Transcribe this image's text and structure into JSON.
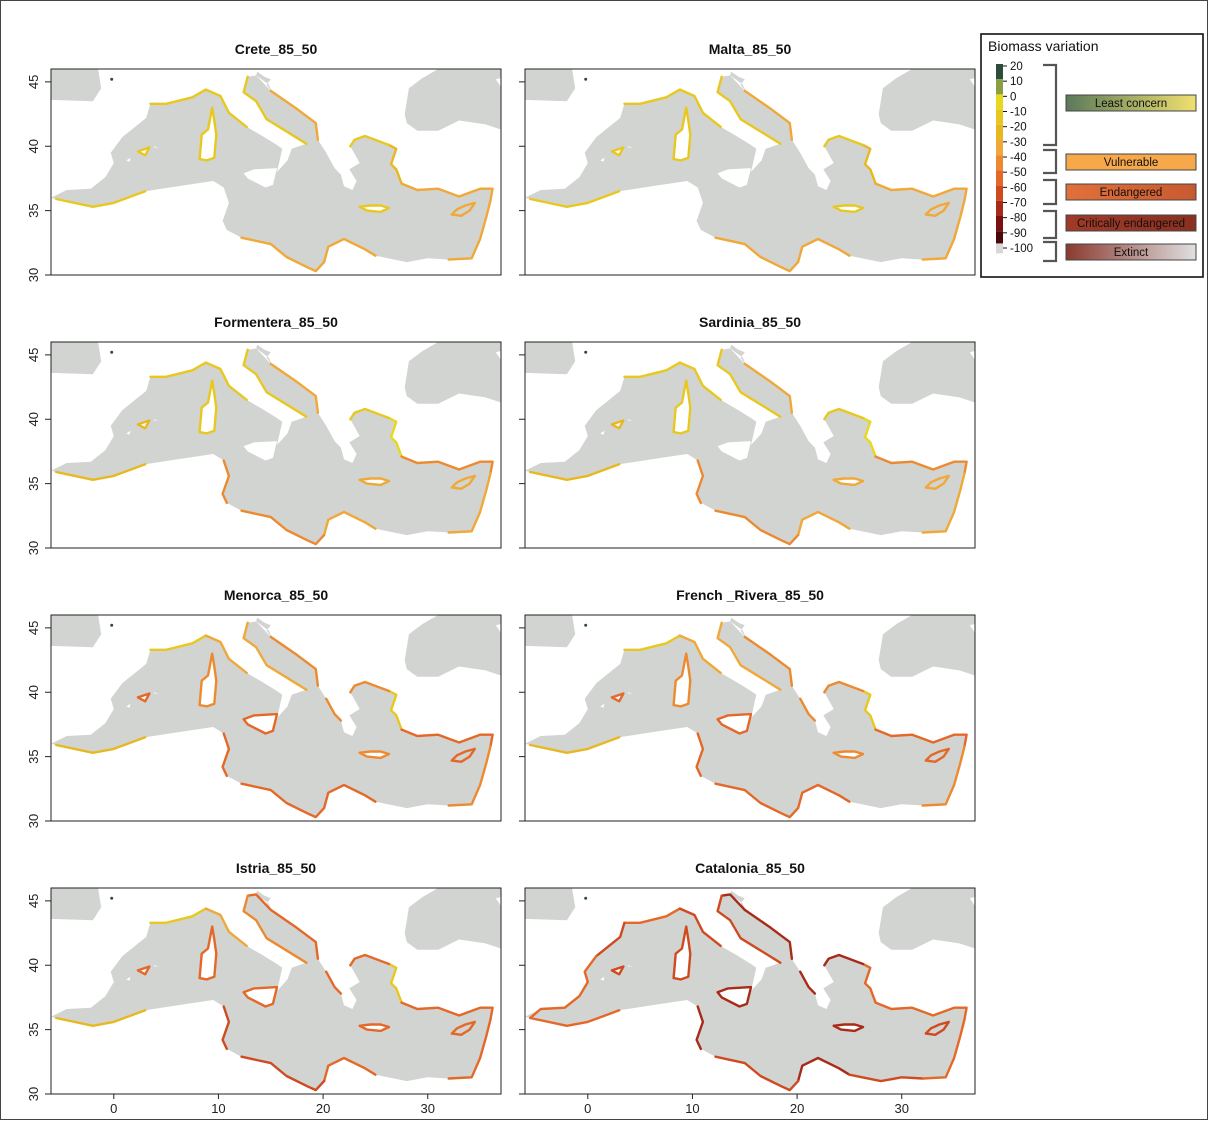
{
  "panels": [
    {
      "title": "Crete_85_50",
      "scenario": "crete"
    },
    {
      "title": "Malta_85_50",
      "scenario": "malta"
    },
    {
      "title": "Formentera_85_50",
      "scenario": "formentera"
    },
    {
      "title": "Sardinia_85_50",
      "scenario": "sardinia"
    },
    {
      "title": "Menorca_85_50",
      "scenario": "menorca"
    },
    {
      "title": "French _Rivera_85_50",
      "scenario": "french"
    },
    {
      "title": "Istria_85_50",
      "scenario": "istria"
    },
    {
      "title": "Catalonia_85_50",
      "scenario": "catalonia"
    }
  ],
  "axes": {
    "lon_ticks": [
      "0",
      "10",
      "20",
      "30"
    ],
    "lat_ticks": [
      "30",
      "35",
      "40",
      "45"
    ],
    "lon_range": [
      -6,
      37
    ],
    "lat_range": [
      30,
      46
    ]
  },
  "legend": {
    "title": "Biomass variation",
    "scale_labels": [
      "20",
      "10",
      "0",
      "-10",
      "-20",
      "-30",
      "-40",
      "-50",
      "-60",
      "-70",
      "-80",
      "-90",
      "-100"
    ],
    "categories": [
      {
        "label": "Least concern",
        "from": "#5a7a5a",
        "to": "#f0e070"
      },
      {
        "label": "Vulnerable",
        "from": "#f6a84a",
        "to": "#f6a84a"
      },
      {
        "label": "Endangered",
        "from": "#e0703a",
        "to": "#c85a30"
      },
      {
        "label": "Critically endangered",
        "from": "#a03a28",
        "to": "#8a3020"
      },
      {
        "label": "Extinct",
        "from": "#8a3a30",
        "to": "#e0e0e0"
      }
    ]
  },
  "colors": {
    "land": "#d2d4d2",
    "sea_band": "#dcdcdc",
    "scale": [
      "#2d4d3c",
      "#8aa040",
      "#e8d820",
      "#e8c820",
      "#e8b820",
      "#f0a838",
      "#ec8a30",
      "#e46828",
      "#d04a20",
      "#a82a18",
      "#7a1010",
      "#4a0808",
      "#d8d8d8"
    ]
  }
}
